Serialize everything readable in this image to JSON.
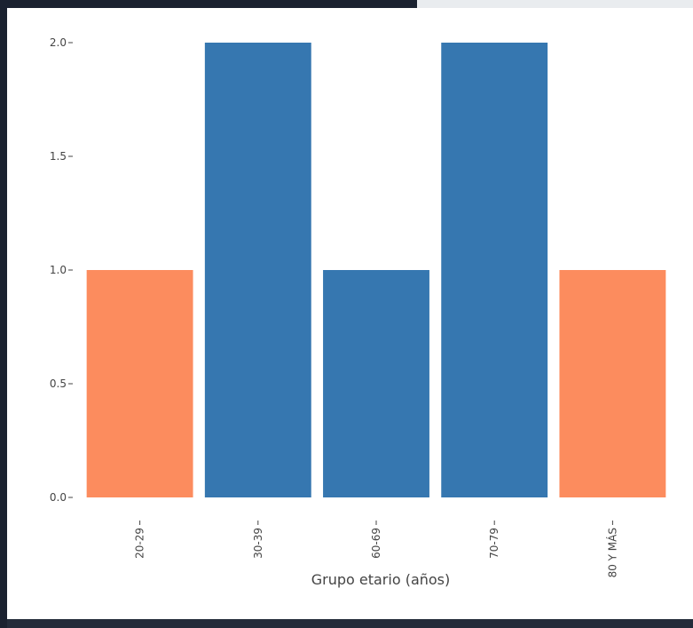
{
  "chart_data": {
    "type": "bar",
    "title": "",
    "xlabel": "Grupo etario (años)",
    "ylabel": "",
    "categories": [
      "20-29",
      "30-39",
      "60-69",
      "70-79",
      "80 Y MÁS"
    ],
    "values": [
      1,
      2,
      1,
      2,
      1
    ],
    "bar_colors": [
      "#fc8c5e",
      "#3677b0",
      "#3677b0",
      "#3677b0",
      "#fc8c5e"
    ],
    "ylim": [
      0,
      2
    ],
    "yticks": [
      "0.0",
      "0.5",
      "1.0",
      "1.5",
      "2.0"
    ],
    "grid": false,
    "legend": "none"
  }
}
